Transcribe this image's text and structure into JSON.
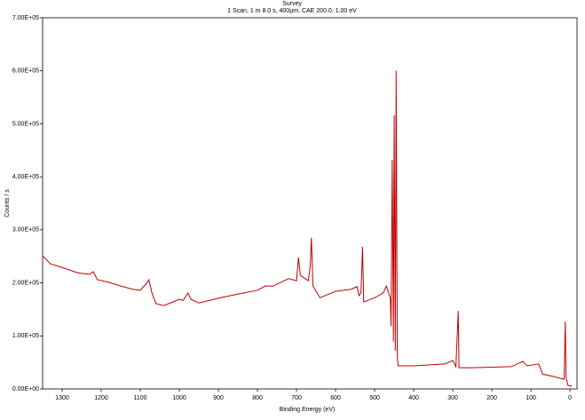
{
  "chart_data": {
    "type": "line",
    "title": "Survey",
    "subtitle": "1 Scan,  1 m 8.0 s,  400µm,  CAE 200.0,  1.00 eV",
    "xlabel": "Binding Energy (eV)",
    "ylabel": "Counts / s",
    "color": "#c00000",
    "x": [
      1350,
      1330,
      1300,
      1260,
      1230,
      1220,
      1210,
      1180,
      1150,
      1120,
      1100,
      1085,
      1078,
      1070,
      1060,
      1040,
      1010,
      1000,
      990,
      978,
      970,
      950,
      900,
      850,
      800,
      780,
      760,
      720,
      700,
      695,
      690,
      670,
      665,
      662,
      658,
      640,
      600,
      560,
      545,
      540,
      535,
      531,
      528,
      500,
      478,
      470,
      460,
      458,
      455,
      452,
      450,
      447,
      445,
      442,
      440,
      400,
      320,
      300,
      292,
      286,
      284,
      250,
      150,
      120,
      110,
      80,
      70,
      40,
      15,
      12,
      10,
      5,
      -5
    ],
    "values": [
      251000,
      236000,
      229000,
      219000,
      216000,
      221000,
      206000,
      201000,
      194000,
      188000,
      186000,
      198000,
      206000,
      181000,
      161000,
      157000,
      166000,
      169000,
      167000,
      181000,
      169000,
      162000,
      171000,
      179000,
      186000,
      194000,
      194000,
      208000,
      204000,
      248000,
      214000,
      204000,
      231000,
      285000,
      194000,
      172000,
      184000,
      188000,
      193000,
      176000,
      181000,
      268000,
      164000,
      172000,
      181000,
      194000,
      171000,
      119000,
      432000,
      89000,
      516000,
      72000,
      600000,
      60000,
      43500,
      43500,
      47000,
      53600,
      42000,
      147000,
      40000,
      40000,
      42000,
      52000,
      43500,
      47000,
      28000,
      23000,
      18000,
      127000,
      21000,
      6700,
      5000
    ],
    "xlim": [
      1350,
      -18
    ],
    "ylim": [
      0,
      700000
    ],
    "xticks": [
      1300,
      1200,
      1100,
      1000,
      900,
      800,
      700,
      600,
      500,
      400,
      300,
      200,
      100,
      0
    ],
    "yticks": [
      {
        "value": 0,
        "label": "0.00E+00"
      },
      {
        "value": 100000,
        "label": "1.00E+05"
      },
      {
        "value": 200000,
        "label": "2.00E+05"
      },
      {
        "value": 300000,
        "label": "3.00E+05"
      },
      {
        "value": 400000,
        "label": "4.00E+05"
      },
      {
        "value": 500000,
        "label": "5.00E+05"
      },
      {
        "value": 600000,
        "label": "6.00E+05"
      },
      {
        "value": 700000,
        "label": "7.00E+05"
      }
    ]
  }
}
